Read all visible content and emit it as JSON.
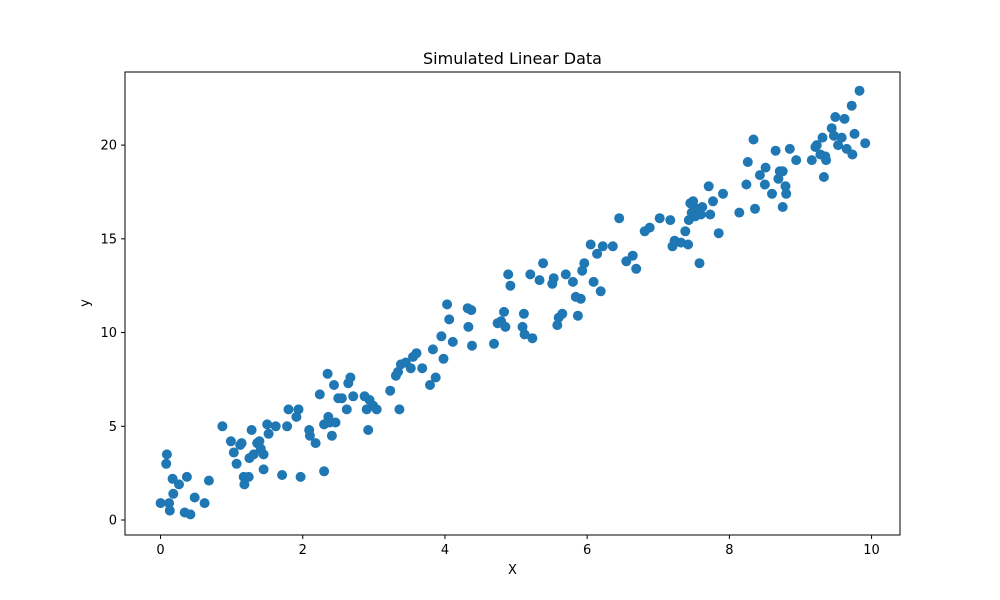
{
  "chart_data": {
    "type": "scatter",
    "title": "Simulated Linear Data",
    "xlabel": "X",
    "ylabel": "y",
    "xlim": [
      -0.5,
      10.4
    ],
    "ylim": [
      -0.8,
      23.9
    ],
    "xticks": [
      0,
      2,
      4,
      6,
      8,
      10
    ],
    "yticks": [
      0,
      5,
      10,
      15,
      20
    ],
    "grid": false,
    "colors": {
      "point": "#1f77b4"
    },
    "points": [
      [
        0.0,
        0.9
      ],
      [
        0.08,
        3.0
      ],
      [
        0.09,
        3.5
      ],
      [
        0.12,
        0.9
      ],
      [
        0.13,
        0.5
      ],
      [
        0.17,
        2.2
      ],
      [
        0.18,
        1.4
      ],
      [
        0.26,
        1.9
      ],
      [
        0.34,
        0.4
      ],
      [
        0.37,
        2.3
      ],
      [
        0.42,
        0.3
      ],
      [
        0.48,
        1.2
      ],
      [
        0.62,
        0.9
      ],
      [
        0.68,
        2.1
      ],
      [
        0.87,
        5.0
      ],
      [
        0.99,
        4.2
      ],
      [
        1.03,
        3.6
      ],
      [
        1.07,
        3.0
      ],
      [
        1.12,
        4.0
      ],
      [
        1.14,
        4.1
      ],
      [
        1.17,
        2.3
      ],
      [
        1.18,
        1.9
      ],
      [
        1.24,
        2.3
      ],
      [
        1.25,
        3.3
      ],
      [
        1.28,
        4.8
      ],
      [
        1.31,
        3.5
      ],
      [
        1.36,
        4.1
      ],
      [
        1.39,
        4.2
      ],
      [
        1.41,
        3.8
      ],
      [
        1.45,
        3.5
      ],
      [
        1.45,
        2.7
      ],
      [
        1.5,
        5.1
      ],
      [
        1.52,
        4.6
      ],
      [
        1.62,
        5.0
      ],
      [
        1.71,
        2.4
      ],
      [
        1.78,
        5.0
      ],
      [
        1.8,
        5.9
      ],
      [
        1.91,
        5.5
      ],
      [
        1.94,
        5.9
      ],
      [
        1.97,
        2.3
      ],
      [
        2.09,
        4.8
      ],
      [
        2.1,
        4.5
      ],
      [
        2.18,
        4.1
      ],
      [
        2.24,
        6.7
      ],
      [
        2.3,
        5.1
      ],
      [
        2.3,
        2.6
      ],
      [
        2.35,
        7.8
      ],
      [
        2.36,
        5.5
      ],
      [
        2.38,
        5.2
      ],
      [
        2.41,
        4.5
      ],
      [
        2.44,
        7.2
      ],
      [
        2.46,
        5.2
      ],
      [
        2.5,
        6.5
      ],
      [
        2.55,
        6.5
      ],
      [
        2.62,
        5.9
      ],
      [
        2.64,
        7.3
      ],
      [
        2.67,
        7.6
      ],
      [
        2.71,
        6.6
      ],
      [
        2.87,
        6.6
      ],
      [
        2.9,
        5.9
      ],
      [
        2.92,
        4.8
      ],
      [
        2.94,
        6.4
      ],
      [
        2.99,
        6.1
      ],
      [
        3.04,
        5.9
      ],
      [
        3.23,
        6.9
      ],
      [
        3.31,
        7.7
      ],
      [
        3.34,
        7.9
      ],
      [
        3.36,
        5.9
      ],
      [
        3.38,
        8.3
      ],
      [
        3.45,
        8.4
      ],
      [
        3.52,
        8.1
      ],
      [
        3.55,
        8.7
      ],
      [
        3.6,
        8.9
      ],
      [
        3.68,
        8.1
      ],
      [
        3.79,
        7.2
      ],
      [
        3.83,
        9.1
      ],
      [
        3.87,
        7.6
      ],
      [
        3.95,
        9.8
      ],
      [
        3.98,
        8.6
      ],
      [
        4.03,
        11.5
      ],
      [
        4.06,
        10.7
      ],
      [
        4.11,
        9.5
      ],
      [
        4.32,
        11.3
      ],
      [
        4.33,
        10.3
      ],
      [
        4.37,
        11.2
      ],
      [
        4.38,
        9.3
      ],
      [
        4.69,
        9.4
      ],
      [
        4.74,
        10.5
      ],
      [
        4.79,
        10.6
      ],
      [
        4.83,
        11.1
      ],
      [
        4.85,
        10.3
      ],
      [
        4.89,
        13.1
      ],
      [
        4.92,
        12.5
      ],
      [
        5.09,
        10.3
      ],
      [
        5.11,
        11.0
      ],
      [
        5.12,
        9.9
      ],
      [
        5.2,
        13.1
      ],
      [
        5.23,
        9.7
      ],
      [
        5.33,
        12.8
      ],
      [
        5.38,
        13.7
      ],
      [
        5.51,
        12.6
      ],
      [
        5.53,
        12.9
      ],
      [
        5.58,
        10.4
      ],
      [
        5.6,
        10.8
      ],
      [
        5.65,
        11.0
      ],
      [
        5.7,
        13.1
      ],
      [
        5.8,
        12.7
      ],
      [
        5.84,
        11.9
      ],
      [
        5.87,
        10.9
      ],
      [
        5.91,
        11.8
      ],
      [
        5.93,
        13.3
      ],
      [
        5.96,
        13.7
      ],
      [
        6.05,
        14.7
      ],
      [
        6.09,
        12.7
      ],
      [
        6.14,
        14.2
      ],
      [
        6.19,
        12.2
      ],
      [
        6.22,
        14.6
      ],
      [
        6.36,
        14.6
      ],
      [
        6.45,
        16.1
      ],
      [
        6.55,
        13.8
      ],
      [
        6.64,
        14.1
      ],
      [
        6.69,
        13.4
      ],
      [
        6.81,
        15.4
      ],
      [
        6.88,
        15.6
      ],
      [
        7.02,
        16.1
      ],
      [
        7.17,
        16.0
      ],
      [
        7.2,
        14.6
      ],
      [
        7.23,
        14.9
      ],
      [
        7.32,
        14.8
      ],
      [
        7.38,
        15.4
      ],
      [
        7.42,
        14.7
      ],
      [
        7.43,
        16.0
      ],
      [
        7.45,
        16.9
      ],
      [
        7.47,
        16.4
      ],
      [
        7.49,
        17.0
      ],
      [
        7.52,
        16.2
      ],
      [
        7.55,
        16.6
      ],
      [
        7.58,
        13.7
      ],
      [
        7.6,
        16.3
      ],
      [
        7.62,
        16.7
      ],
      [
        7.71,
        17.8
      ],
      [
        7.73,
        16.3
      ],
      [
        7.77,
        17.0
      ],
      [
        7.85,
        15.3
      ],
      [
        7.91,
        17.4
      ],
      [
        8.14,
        16.4
      ],
      [
        8.24,
        17.9
      ],
      [
        8.26,
        19.1
      ],
      [
        8.34,
        20.3
      ],
      [
        8.36,
        16.6
      ],
      [
        8.43,
        18.4
      ],
      [
        8.5,
        17.9
      ],
      [
        8.51,
        18.8
      ],
      [
        8.6,
        17.4
      ],
      [
        8.65,
        19.7
      ],
      [
        8.69,
        18.2
      ],
      [
        8.71,
        18.6
      ],
      [
        8.75,
        18.6
      ],
      [
        8.75,
        16.7
      ],
      [
        8.79,
        17.8
      ],
      [
        8.8,
        17.4
      ],
      [
        8.85,
        19.8
      ],
      [
        8.94,
        19.2
      ],
      [
        9.16,
        19.2
      ],
      [
        9.21,
        19.9
      ],
      [
        9.23,
        20.0
      ],
      [
        9.28,
        19.5
      ],
      [
        9.31,
        20.4
      ],
      [
        9.33,
        18.3
      ],
      [
        9.35,
        19.4
      ],
      [
        9.36,
        19.2
      ],
      [
        9.44,
        20.9
      ],
      [
        9.47,
        20.5
      ],
      [
        9.49,
        21.5
      ],
      [
        9.53,
        20.0
      ],
      [
        9.58,
        20.4
      ],
      [
        9.62,
        21.4
      ],
      [
        9.65,
        19.8
      ],
      [
        9.72,
        22.1
      ],
      [
        9.73,
        19.5
      ],
      [
        9.76,
        20.6
      ],
      [
        9.83,
        22.9
      ],
      [
        9.91,
        20.1
      ]
    ]
  }
}
